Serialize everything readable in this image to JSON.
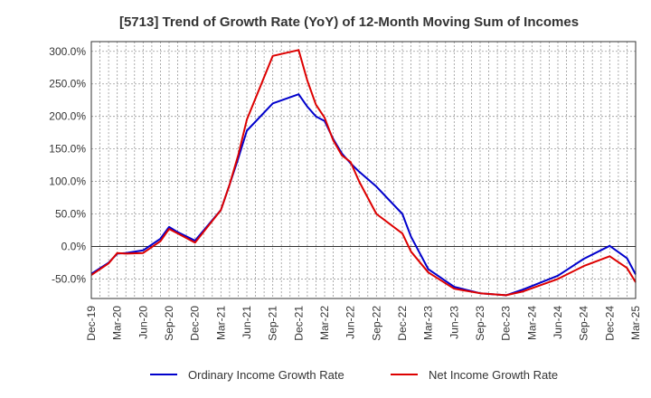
{
  "chart_data": {
    "type": "line",
    "title": "[5713]  Trend of Growth Rate (YoY) of 12-Month Moving Sum of Incomes",
    "xlabel": "",
    "ylabel": "",
    "ylim": [
      -80,
      315
    ],
    "yticks": [
      300,
      250,
      200,
      150,
      100,
      50,
      0,
      -50
    ],
    "ytick_labels": [
      "300.0%",
      "250.0%",
      "200.0%",
      "150.0%",
      "100.0%",
      "50.0%",
      "0.0%",
      "-50.0%"
    ],
    "xlim": [
      0,
      63
    ],
    "xtick_positions": [
      0,
      3,
      6,
      9,
      12,
      15,
      18,
      21,
      24,
      27,
      30,
      33,
      36,
      39,
      42,
      45,
      48,
      51,
      54,
      57,
      60,
      63
    ],
    "xtick_labels": [
      "Dec-19",
      "Mar-20",
      "Jun-20",
      "Sep-20",
      "Dec-20",
      "Mar-21",
      "Jun-21",
      "Sep-21",
      "Dec-21",
      "Mar-22",
      "Jun-22",
      "Sep-22",
      "Dec-22",
      "Mar-23",
      "Jun-23",
      "Sep-23",
      "Dec-23",
      "Mar-24",
      "Jun-24",
      "Sep-24",
      "Dec-24",
      "Mar-25"
    ],
    "grid": true,
    "legend_position": "bottom",
    "series": [
      {
        "name": "Ordinary Income Growth Rate",
        "color": "#0000cc",
        "points": [
          [
            0,
            -42
          ],
          [
            2,
            -25
          ],
          [
            3,
            -11
          ],
          [
            4,
            -10
          ],
          [
            6,
            -6
          ],
          [
            8,
            12
          ],
          [
            9,
            30
          ],
          [
            10,
            22
          ],
          [
            12,
            9
          ],
          [
            15,
            56
          ],
          [
            16,
            95
          ],
          [
            17,
            135
          ],
          [
            18,
            178
          ],
          [
            21,
            220
          ],
          [
            24,
            234
          ],
          [
            25,
            215
          ],
          [
            26,
            200
          ],
          [
            27,
            193
          ],
          [
            28,
            165
          ],
          [
            29,
            143
          ],
          [
            30,
            128
          ],
          [
            31,
            115
          ],
          [
            33,
            92
          ],
          [
            36,
            50
          ],
          [
            37,
            15
          ],
          [
            39,
            -35
          ],
          [
            42,
            -62
          ],
          [
            45,
            -72
          ],
          [
            48,
            -75
          ],
          [
            50,
            -66
          ],
          [
            54,
            -45
          ],
          [
            57,
            -19
          ],
          [
            60,
            1
          ],
          [
            62,
            -18
          ],
          [
            63,
            -43
          ]
        ]
      },
      {
        "name": "Net Income Growth Rate",
        "color": "#dd0000",
        "points": [
          [
            0,
            -44
          ],
          [
            2,
            -26
          ],
          [
            3,
            -10
          ],
          [
            4,
            -11
          ],
          [
            6,
            -10
          ],
          [
            8,
            8
          ],
          [
            9,
            27
          ],
          [
            10,
            20
          ],
          [
            12,
            6
          ],
          [
            15,
            56
          ],
          [
            16,
            95
          ],
          [
            17,
            140
          ],
          [
            18,
            195
          ],
          [
            21,
            293
          ],
          [
            24,
            302
          ],
          [
            25,
            255
          ],
          [
            26,
            218
          ],
          [
            27,
            198
          ],
          [
            28,
            163
          ],
          [
            29,
            140
          ],
          [
            30,
            130
          ],
          [
            31,
            100
          ],
          [
            33,
            50
          ],
          [
            36,
            20
          ],
          [
            37,
            -8
          ],
          [
            39,
            -40
          ],
          [
            42,
            -65
          ],
          [
            45,
            -72
          ],
          [
            48,
            -75
          ],
          [
            50,
            -69
          ],
          [
            54,
            -50
          ],
          [
            57,
            -30
          ],
          [
            60,
            -15
          ],
          [
            62,
            -33
          ],
          [
            63,
            -55
          ]
        ]
      }
    ]
  }
}
